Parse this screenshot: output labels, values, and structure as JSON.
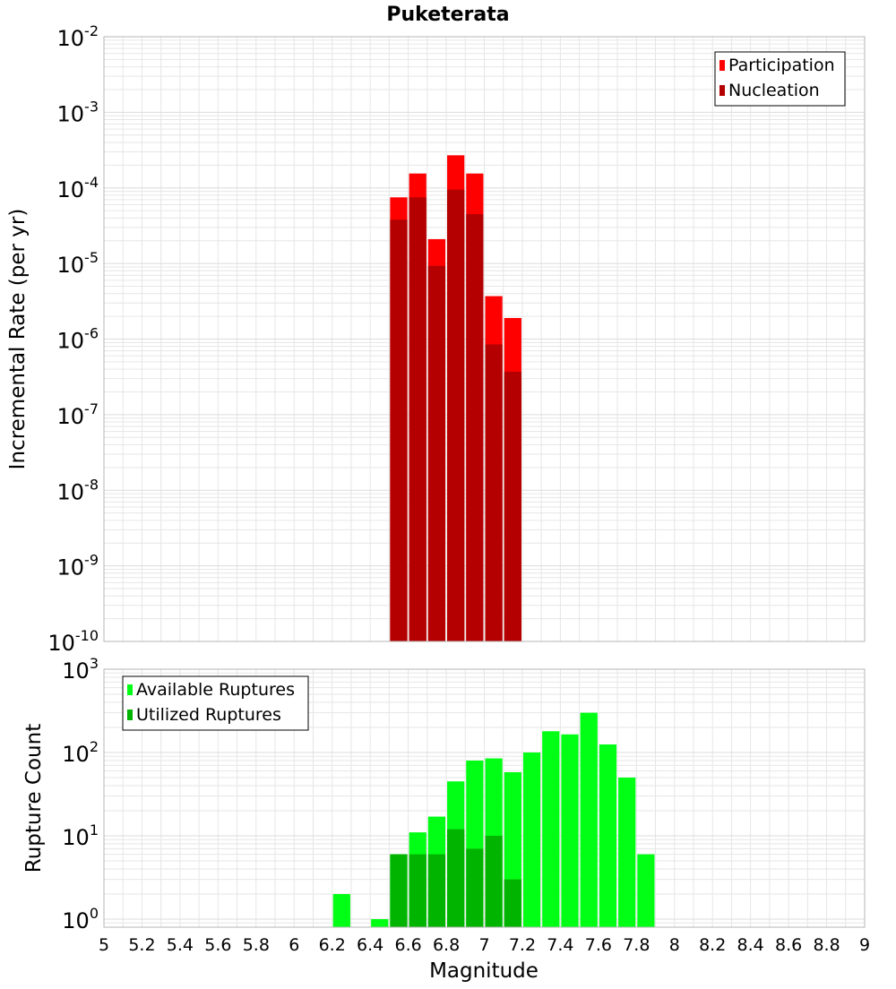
{
  "title": "Puketerata",
  "xlabel": "Magnitude",
  "colors": {
    "participation": "#ff0000",
    "nucleation": "#b40000",
    "available": "#00ff14",
    "utilized": "#00b400",
    "grid": "#e6e6e6",
    "border": "#b4b4b4"
  },
  "chart_data": [
    {
      "type": "bar",
      "title": "Puketerata",
      "xlabel": "Magnitude",
      "ylabel": "Incremental Rate (per yr)",
      "yscale": "log",
      "xlim": [
        5,
        9
      ],
      "ylim": [
        1e-10,
        0.01
      ],
      "grid": true,
      "legend_position": "top-right",
      "y_tick_labels": [
        {
          "base": "10",
          "exp": "-10",
          "value": 1e-10
        },
        {
          "base": "10",
          "exp": "-9",
          "value": 1e-09
        },
        {
          "base": "10",
          "exp": "-8",
          "value": 1e-08
        },
        {
          "base": "10",
          "exp": "-7",
          "value": 1e-07
        },
        {
          "base": "10",
          "exp": "-6",
          "value": 1e-06
        },
        {
          "base": "10",
          "exp": "-5",
          "value": 1e-05
        },
        {
          "base": "10",
          "exp": "-4",
          "value": 0.0001
        },
        {
          "base": "10",
          "exp": "-3",
          "value": 0.001
        },
        {
          "base": "10",
          "exp": "-2",
          "value": 0.01
        }
      ],
      "x": [
        6.55,
        6.65,
        6.75,
        6.85,
        6.95,
        7.05,
        7.15
      ],
      "series": [
        {
          "name": "Participation",
          "values": [
            7.5e-05,
            0.000155,
            2.1e-05,
            0.00027,
            0.000155,
            3.7e-06,
            1.9e-06
          ]
        },
        {
          "name": "Nucleation",
          "values": [
            3.8e-05,
            7.5e-05,
            9.3e-06,
            9.5e-05,
            4.5e-05,
            8.5e-07,
            3.7e-07
          ]
        }
      ]
    },
    {
      "type": "bar",
      "xlabel": "Magnitude",
      "ylabel": "Rupture Count",
      "yscale": "log",
      "xlim": [
        5,
        9
      ],
      "ylim": [
        0.8,
        1000
      ],
      "grid": true,
      "legend_position": "top-left",
      "y_tick_labels": [
        {
          "base": "10",
          "exp": "0",
          "value": 1
        },
        {
          "base": "10",
          "exp": "1",
          "value": 10
        },
        {
          "base": "10",
          "exp": "2",
          "value": 100
        },
        {
          "base": "10",
          "exp": "3",
          "value": 1000
        }
      ],
      "x_tick_labels": [
        "5",
        "5.2",
        "5.4",
        "5.6",
        "5.8",
        "6",
        "6.2",
        "6.4",
        "6.6",
        "6.8",
        "7",
        "7.2",
        "7.4",
        "7.6",
        "7.8",
        "8",
        "8.2",
        "8.4",
        "8.6",
        "8.8",
        "9"
      ],
      "x": [
        6.25,
        6.45,
        6.55,
        6.65,
        6.75,
        6.85,
        6.95,
        7.05,
        7.15,
        7.25,
        7.35,
        7.45,
        7.55,
        7.65,
        7.75,
        7.85
      ],
      "series": [
        {
          "name": "Available Ruptures",
          "values": [
            2,
            1,
            6,
            11,
            17,
            45,
            80,
            85,
            58,
            100,
            180,
            165,
            300,
            125,
            50,
            6
          ]
        },
        {
          "name": "Utilized Ruptures",
          "values": [
            0,
            0,
            6,
            6,
            6,
            12,
            7,
            10,
            3,
            0,
            0,
            0,
            0,
            0,
            0,
            0
          ]
        }
      ]
    }
  ]
}
